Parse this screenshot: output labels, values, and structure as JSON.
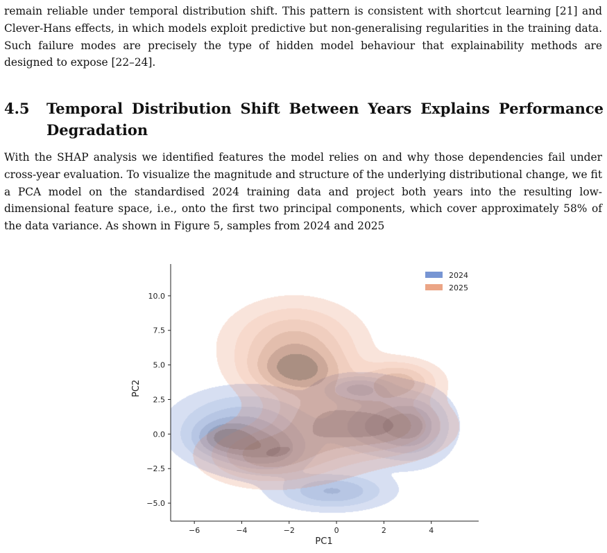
{
  "paragraph_before": "remain reliable under temporal distribution shift. This pattern is consistent with shortcut learning [21] and Clever-Hans effects, in which models exploit predictive but non-generalising regularities in the training data. Such failure modes are precisely the type of hidden model behaviour that explainability methods are designed to expose [22–24].",
  "section": {
    "number": "4.5",
    "title": "Temporal Distribution Shift Between Years Explains Performance Degradation"
  },
  "paragraph_after": "With the SHAP analysis we identified features the model relies on and why those dependencies fail under cross-year evaluation. To visualize the magnitude and structure of the underlying distributional change, we fit a PCA model on the standardised 2024 training data and project both years into the resulting low-dimensional feature space, i.e., onto the first two principal components, which cover approximately 58% of the data variance. As shown in Figure 5, samples from 2024 and 2025",
  "chart_data": {
    "type": "kde_contour",
    "xlabel": "PC1",
    "ylabel": "PC2",
    "xlim": [
      -7,
      6
    ],
    "ylim": [
      -6.3,
      12.3
    ],
    "xticks": [
      -6,
      -4,
      -2,
      0,
      2,
      4
    ],
    "xtick_labels": [
      "−6",
      "−4",
      "−2",
      "0",
      "2",
      "4"
    ],
    "yticks": [
      -5.0,
      -2.5,
      0.0,
      2.5,
      5.0,
      7.5,
      10.0
    ],
    "ytick_labels": [
      "−5.0",
      "−2.5",
      "0.0",
      "2.5",
      "5.0",
      "7.5",
      "10.0"
    ],
    "legend_position": "top-right",
    "grid": false,
    "series": [
      {
        "name": "2024",
        "color": "#4a72c4",
        "modes": [
          {
            "x": -3.8,
            "y": 0.5,
            "sx": 1.8,
            "sy": 1.6
          },
          {
            "x": -4.8,
            "y": -0.3,
            "sx": 0.8,
            "sy": 0.8
          },
          {
            "x": -3.0,
            "y": -1.3,
            "sx": 1.2,
            "sy": 1.0
          },
          {
            "x": -0.2,
            "y": -4.1,
            "sx": 1.4,
            "sy": 0.8
          },
          {
            "x": 1.8,
            "y": 0.6,
            "sx": 1.3,
            "sy": 1.4
          },
          {
            "x": 3.3,
            "y": 0.6,
            "sx": 0.9,
            "sy": 1.5
          },
          {
            "x": 0.9,
            "y": 3.3,
            "sx": 0.9,
            "sy": 0.6
          }
        ]
      },
      {
        "name": "2025",
        "color": "#e4875e",
        "modes": [
          {
            "x": -1.8,
            "y": 6.4,
            "sx": 1.6,
            "sy": 1.8
          },
          {
            "x": -1.7,
            "y": 4.6,
            "sx": 1.2,
            "sy": 1.0
          },
          {
            "x": -3.0,
            "y": -1.5,
            "sx": 1.5,
            "sy": 1.2
          },
          {
            "x": 2.1,
            "y": 0.6,
            "sx": 1.5,
            "sy": 1.3
          },
          {
            "x": 2.6,
            "y": 3.8,
            "sx": 1.0,
            "sy": 0.9
          },
          {
            "x": -0.6,
            "y": 1.0,
            "sx": 1.6,
            "sy": 2.0
          }
        ]
      }
    ]
  }
}
